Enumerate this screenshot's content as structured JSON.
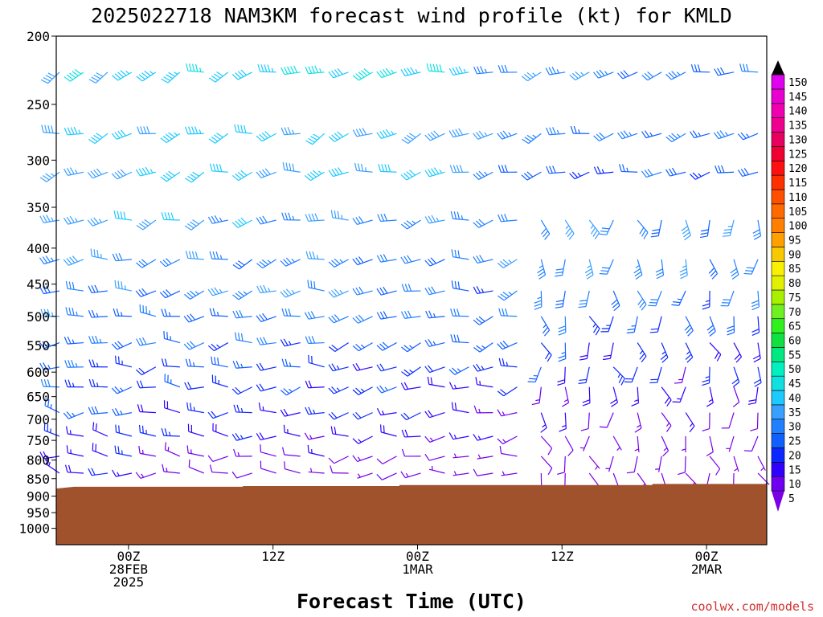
{
  "chart_data": {
    "type": "wind-barb profile",
    "title": "2025022718 NAM3KM forecast wind profile (kt) for KMLD",
    "xlabel": "Forecast Time (UTC)",
    "ylabel": "",
    "y_scale": "log",
    "y_reversed": true,
    "ylim": [
      200,
      1000
    ],
    "y_ticks": [
      "200",
      "250",
      "300",
      "350",
      "400",
      "450",
      "500",
      "550",
      "600",
      "650",
      "700",
      "750",
      "800",
      "850",
      "900",
      "950",
      "1000"
    ],
    "x_unit": "forecast hour from 2025-02-27 18Z",
    "xlim": [
      0,
      59
    ],
    "x_ticks": [
      {
        "hour": 6,
        "lines": [
          "00Z",
          "28FEB",
          "2025"
        ]
      },
      {
        "hour": 18,
        "lines": [
          "12Z"
        ]
      },
      {
        "hour": 30,
        "lines": [
          "00Z",
          "1MAR"
        ]
      },
      {
        "hour": 42,
        "lines": [
          "12Z"
        ]
      },
      {
        "hour": 54,
        "lines": [
          "00Z",
          "2MAR"
        ]
      }
    ],
    "colorbar": {
      "unit": "kt",
      "values": [
        5,
        10,
        15,
        20,
        25,
        30,
        35,
        40,
        45,
        50,
        55,
        60,
        65,
        70,
        75,
        80,
        85,
        90,
        95,
        100,
        105,
        110,
        115,
        120,
        125,
        130,
        135,
        140,
        145,
        150
      ],
      "colors": [
        "#7a00e6",
        "#7000f0",
        "#3000ff",
        "#0a28ff",
        "#1060ff",
        "#2080ff",
        "#3aa0ff",
        "#1ccaff",
        "#10e0e0",
        "#00f0c0",
        "#00e880",
        "#10e040",
        "#30f020",
        "#70f020",
        "#a8f000",
        "#e0f000",
        "#f8f000",
        "#f8c800",
        "#ffa000",
        "#ff8000",
        "#ff6a00",
        "#ff5000",
        "#ff3000",
        "#ff1010",
        "#f00030",
        "#e80060",
        "#ef0090",
        "#f000b0",
        "#e800d0",
        "#e000f0"
      ],
      "top_arrow_color": "#000000"
    },
    "terrain": {
      "color": "#a0522d",
      "surface_pressure_by_hour": [
        [
          0,
          878
        ],
        [
          1.5,
          873
        ],
        [
          15.5,
          873
        ],
        [
          15.5,
          871
        ],
        [
          28.5,
          871
        ],
        [
          28.5,
          868
        ],
        [
          49.5,
          868
        ],
        [
          49.5,
          865
        ],
        [
          59,
          865
        ]
      ]
    },
    "barb_hours": [
      0,
      2,
      4,
      6,
      8,
      10,
      12,
      14,
      16,
      18,
      20,
      22,
      24,
      26,
      28,
      30,
      32,
      34,
      36,
      38,
      40,
      42,
      44,
      46,
      48,
      50,
      52,
      54,
      56,
      58
    ],
    "barb_levels": [
      225,
      275,
      312,
      365,
      415,
      460,
      500,
      545,
      590,
      630,
      685,
      740,
      790,
      835
    ]
  },
  "credit": "coolwx.com/models"
}
